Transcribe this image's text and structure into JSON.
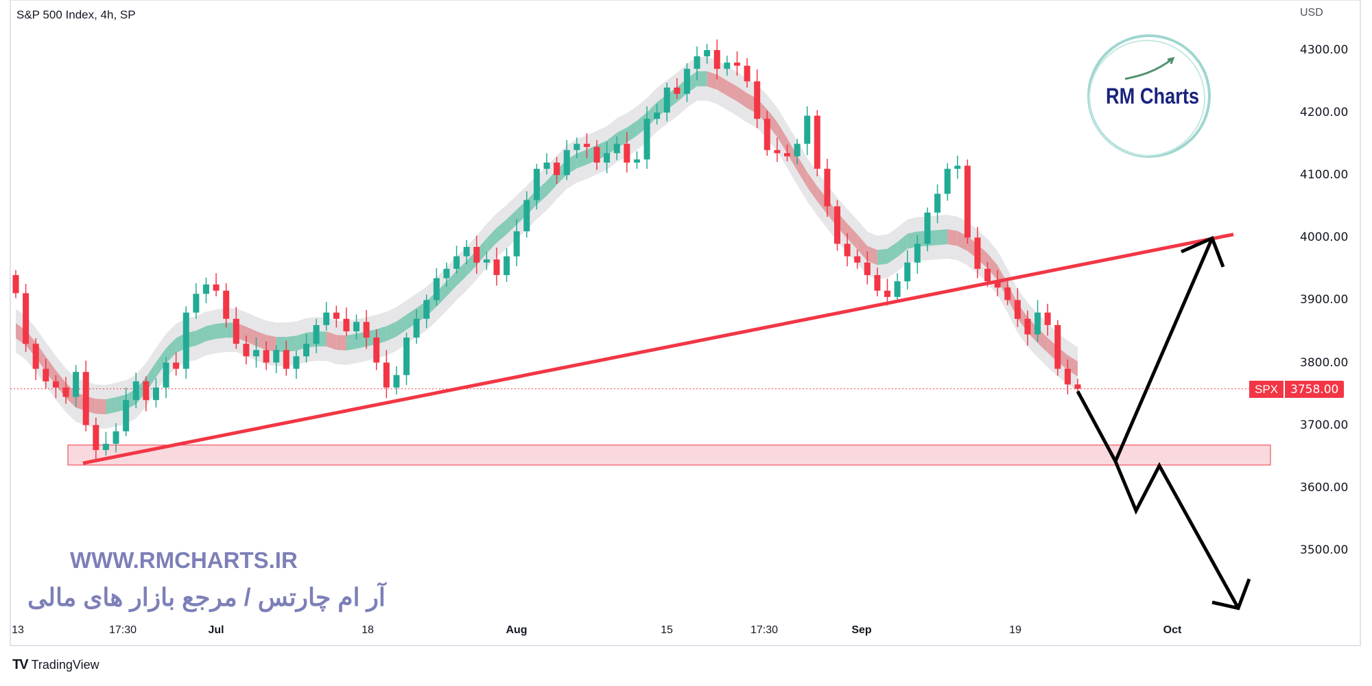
{
  "header": {
    "title": "S&P 500 Index, 4h, SP",
    "currency": "USD"
  },
  "price_label": {
    "symbol": "SPX",
    "value": "3758.00"
  },
  "watermark": {
    "url": "WWW.RMCHARTS.IR",
    "tagline": "آر ام چارتس / مرجع بازار های مالی",
    "logo_text": "RM Charts"
  },
  "footer": {
    "brand": "TradingView",
    "brand_icon": "tradingview-logo-icon"
  },
  "colors": {
    "up": "#22ab94",
    "down": "#f23645",
    "trendline": "#f23645",
    "zone_fill": "#f8d0d4",
    "projection": "#000000",
    "watermark": "#7d7fb8",
    "logo": "#1a237e"
  },
  "chart_data": {
    "type": "candlestick",
    "title": "S&P 500 Index, 4h, SP",
    "ylabel": "USD",
    "ylim": [
      3400,
      4330
    ],
    "yticks": [
      "4300.00",
      "4200.00",
      "4100.00",
      "4000.00",
      "3900.00",
      "3800.00",
      "3700.00",
      "3600.00",
      "3500.00"
    ],
    "xticks": [
      {
        "label": "13",
        "major": false
      },
      {
        "label": "17:30",
        "major": false
      },
      {
        "label": "Jul",
        "major": true
      },
      {
        "label": "18",
        "major": false
      },
      {
        "label": "Aug",
        "major": true
      },
      {
        "label": "15",
        "major": false
      },
      {
        "label": "17:30",
        "major": false
      },
      {
        "label": "Sep",
        "major": true
      },
      {
        "label": "19",
        "major": false
      },
      {
        "label": "Oct",
        "major": true
      }
    ],
    "first_open": 3940,
    "close": [
      3911,
      3830,
      3790,
      3770,
      3760,
      3745,
      3785,
      3700,
      3660,
      3670,
      3690,
      3740,
      3770,
      3740,
      3760,
      3800,
      3790,
      3880,
      3910,
      3925,
      3915,
      3870,
      3830,
      3810,
      3820,
      3800,
      3820,
      3790,
      3810,
      3830,
      3860,
      3880,
      3870,
      3850,
      3865,
      3840,
      3800,
      3760,
      3780,
      3840,
      3870,
      3900,
      3935,
      3950,
      3970,
      3985,
      3960,
      3965,
      3940,
      3970,
      4010,
      4060,
      4110,
      4120,
      4100,
      4140,
      4150,
      4145,
      4120,
      4135,
      4150,
      4120,
      4125,
      4190,
      4200,
      4240,
      4230,
      4270,
      4290,
      4300,
      4270,
      4280,
      4275,
      4250,
      4190,
      4140,
      4135,
      4130,
      4150,
      4195,
      4110,
      4050,
      3990,
      3970,
      3960,
      3940,
      3915,
      3905,
      3930,
      3960,
      3990,
      4040,
      4070,
      4110,
      4115,
      4000,
      3950,
      3930,
      3920,
      3900,
      3870,
      3845,
      3880,
      3860,
      3790,
      3765,
      3758
    ],
    "last_price": 3758,
    "support_zone": [
      3636,
      3668
    ],
    "trendline": [
      3639,
      4005
    ],
    "projection_up": [
      3754,
      3642,
      3999
    ],
    "projection_down": [
      3642,
      3563,
      3635,
      3407
    ]
  }
}
